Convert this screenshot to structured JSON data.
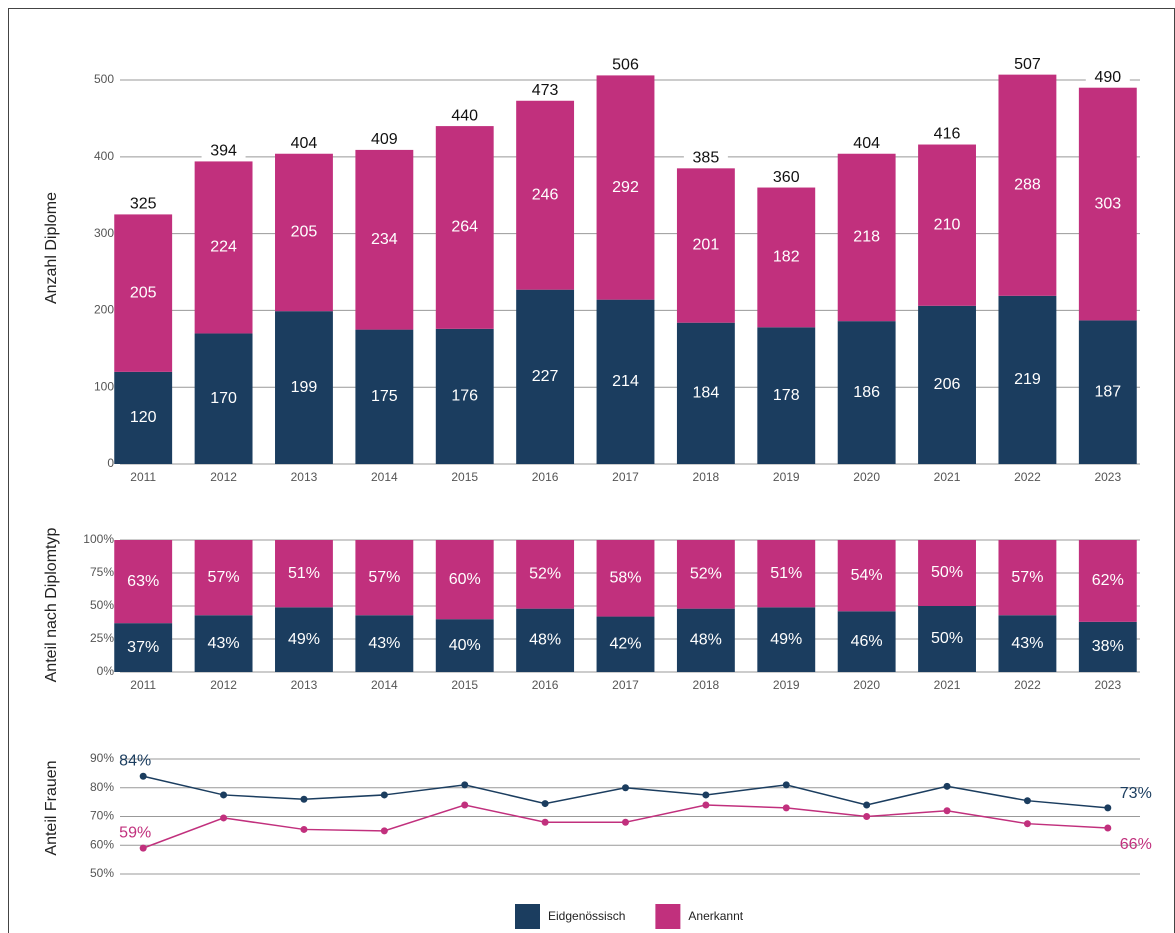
{
  "chart_data": [
    {
      "type": "bar",
      "stacked": true,
      "ylabel": "Anzahl Diplome",
      "categories": [
        "2011",
        "2012",
        "2013",
        "2014",
        "2015",
        "2016",
        "2017",
        "2018",
        "2019",
        "2020",
        "2021",
        "2022",
        "2023"
      ],
      "series": [
        {
          "name": "Eidgenössisch",
          "color": "#1b3d5f",
          "values": [
            120,
            170,
            199,
            175,
            176,
            227,
            214,
            184,
            178,
            186,
            206,
            219,
            187
          ]
        },
        {
          "name": "Anerkannt",
          "color": "#c1307d",
          "values": [
            205,
            224,
            205,
            234,
            264,
            246,
            292,
            201,
            182,
            218,
            210,
            288,
            303
          ]
        }
      ],
      "totals": [
        325,
        394,
        404,
        409,
        440,
        473,
        506,
        385,
        360,
        404,
        416,
        507,
        490
      ],
      "ylim": [
        0,
        540
      ],
      "yticks": [
        0,
        100,
        200,
        300,
        400,
        500
      ],
      "grid": true,
      "legend": "bottom"
    },
    {
      "type": "bar",
      "stacked": true,
      "ylabel": "Anteil nach Diplomtyp",
      "categories": [
        "2011",
        "2012",
        "2013",
        "2014",
        "2015",
        "2016",
        "2017",
        "2018",
        "2019",
        "2020",
        "2021",
        "2022",
        "2023"
      ],
      "series": [
        {
          "color": "#1b3d5f",
          "values": [
            37,
            43,
            49,
            43,
            40,
            48,
            42,
            48,
            49,
            46,
            50,
            43,
            38
          ],
          "value_labels": [
            "37%",
            "43%",
            "49%",
            "43%",
            "40%",
            "48%",
            "42%",
            "48%",
            "49%",
            "46%",
            "50%",
            "43%",
            "38%"
          ]
        },
        {
          "color": "#c1307d",
          "values": [
            63,
            57,
            51,
            57,
            60,
            52,
            58,
            52,
            51,
            54,
            50,
            57,
            62
          ],
          "value_labels": [
            "63%",
            "57%",
            "51%",
            "57%",
            "60%",
            "52%",
            "58%",
            "52%",
            "51%",
            "54%",
            "50%",
            "57%",
            "62%"
          ]
        }
      ],
      "ylim": [
        0,
        100
      ],
      "yticks": [
        {
          "value": 0,
          "label": "0%"
        },
        {
          "value": 25,
          "label": "25%"
        },
        {
          "value": 50,
          "label": "50%"
        },
        {
          "value": 75,
          "label": "75%"
        },
        {
          "value": 100,
          "label": "100%"
        }
      ],
      "grid": true
    },
    {
      "type": "line",
      "ylabel": "Anteil Frauen",
      "series": [
        {
          "color": "#1b3d5f",
          "values": [
            84,
            77.5,
            76,
            77.5,
            81,
            74.5,
            80,
            77.5,
            81,
            74,
            80.5,
            75.5,
            73
          ],
          "value_labels": [
            "84%",
            null,
            null,
            null,
            null,
            null,
            null,
            null,
            null,
            null,
            null,
            null,
            "73%"
          ]
        },
        {
          "color": "#c1307d",
          "values": [
            59,
            69.5,
            65.5,
            65,
            74,
            68,
            68,
            74,
            73,
            70,
            72,
            67.5,
            66
          ],
          "value_labels": [
            "59%",
            null,
            null,
            null,
            null,
            null,
            null,
            null,
            null,
            null,
            null,
            null,
            "66%"
          ]
        }
      ],
      "ylim": [
        50,
        90
      ],
      "yticks": [
        {
          "value": 50,
          "label": "50%"
        },
        {
          "value": 60,
          "label": "60%"
        },
        {
          "value": 70,
          "label": "70%"
        },
        {
          "value": 80,
          "label": "80%"
        },
        {
          "value": 90,
          "label": "90%"
        }
      ],
      "grid": true
    }
  ]
}
